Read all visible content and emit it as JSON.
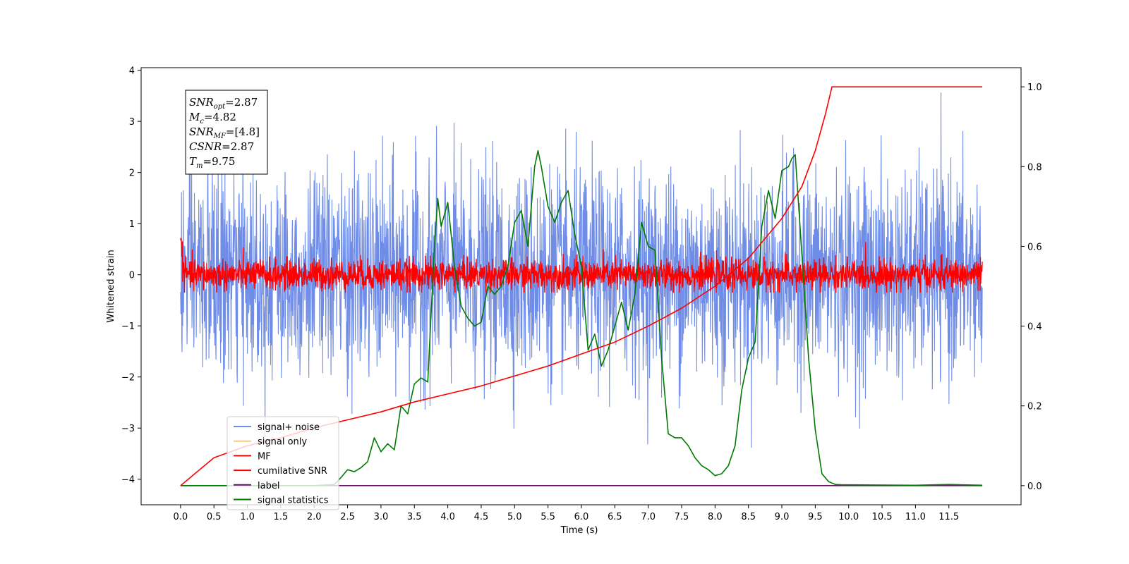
{
  "chart_data": {
    "type": "line",
    "xlabel": "Time (s)",
    "ylabel": "Whitened strain",
    "xlim": [
      -0.59,
      12.58
    ],
    "ylim": [
      -4.5,
      4.05
    ],
    "y2lim": [
      -0.048,
      1.048
    ],
    "xticks": [
      "0.0",
      "0.5",
      "1.0",
      "1.5",
      "2.0",
      "2.5",
      "3.0",
      "3.5",
      "4.0",
      "4.5",
      "5.0",
      "5.5",
      "6.0",
      "6.5",
      "7.0",
      "7.5",
      "8.0",
      "8.5",
      "9.0",
      "9.5",
      "10.0",
      "10.5",
      "11.0",
      "11.5"
    ],
    "yticks": [
      "4",
      "3",
      "2",
      "1",
      "0",
      "−1",
      "−2",
      "−3",
      "−4"
    ],
    "y2ticks": [
      "1.0",
      "0.8",
      "0.6",
      "0.4",
      "0.2",
      "0.0"
    ],
    "grid": false,
    "legend_position": "lower-left",
    "series": [
      {
        "name": "signal+ noise",
        "color": "#6f8ce6",
        "axis": "left",
        "t_range": [
          0,
          12
        ],
        "amplitude_std": 1.0,
        "approx_range": [
          -4.1,
          3.7
        ]
      },
      {
        "name": "signal only",
        "color": "#ffc97a",
        "axis": "left"
      },
      {
        "name": "MF",
        "color": "#ff0000",
        "axis": "left",
        "t_range": [
          0,
          12
        ],
        "amplitude_std": 0.15,
        "approx_range": [
          -0.35,
          0.95
        ]
      },
      {
        "name": "cumilative SNR",
        "color": "#ff0000",
        "axis": "right",
        "x": [
          0,
          0.5,
          1.0,
          1.5,
          2.0,
          2.5,
          3.0,
          3.5,
          4.0,
          4.5,
          5.0,
          5.5,
          6.0,
          6.5,
          7.0,
          7.5,
          8.0,
          8.5,
          9.0,
          9.3,
          9.5,
          9.65,
          9.75,
          10.0,
          12.0
        ],
        "y": [
          0.0,
          0.07,
          0.1,
          0.12,
          0.145,
          0.165,
          0.185,
          0.21,
          0.23,
          0.25,
          0.275,
          0.3,
          0.33,
          0.36,
          0.4,
          0.445,
          0.5,
          0.57,
          0.67,
          0.75,
          0.84,
          0.93,
          1.0,
          1.0,
          1.0
        ]
      },
      {
        "name": "label",
        "color": "#6a0a6e",
        "axis": "right",
        "x": [
          0,
          12
        ],
        "y": [
          0,
          0
        ]
      },
      {
        "name": "signal statistics",
        "color": "#007a00",
        "axis": "right",
        "x": [
          0,
          1.0,
          2.0,
          2.3,
          2.4,
          2.5,
          2.6,
          2.7,
          2.8,
          2.9,
          3.0,
          3.1,
          3.2,
          3.3,
          3.4,
          3.5,
          3.6,
          3.7,
          3.8,
          3.85,
          3.9,
          4.0,
          4.1,
          4.2,
          4.3,
          4.4,
          4.5,
          4.6,
          4.7,
          4.8,
          4.9,
          5.0,
          5.1,
          5.2,
          5.3,
          5.35,
          5.4,
          5.5,
          5.6,
          5.7,
          5.8,
          5.9,
          6.0,
          6.1,
          6.2,
          6.3,
          6.4,
          6.5,
          6.6,
          6.7,
          6.8,
          6.9,
          7.0,
          7.1,
          7.2,
          7.3,
          7.4,
          7.5,
          7.6,
          7.7,
          7.8,
          7.9,
          8.0,
          8.1,
          8.2,
          8.3,
          8.4,
          8.5,
          8.6,
          8.7,
          8.8,
          8.9,
          9.0,
          9.1,
          9.15,
          9.2,
          9.3,
          9.4,
          9.5,
          9.6,
          9.7,
          9.8,
          9.9,
          10.0,
          11.0,
          11.5,
          12.0
        ],
        "y": [
          0.0,
          0.0,
          0.0,
          0.003,
          0.02,
          0.04,
          0.035,
          0.045,
          0.06,
          0.12,
          0.085,
          0.105,
          0.09,
          0.2,
          0.18,
          0.255,
          0.27,
          0.26,
          0.6,
          0.72,
          0.65,
          0.71,
          0.55,
          0.45,
          0.42,
          0.4,
          0.41,
          0.5,
          0.48,
          0.5,
          0.55,
          0.66,
          0.69,
          0.6,
          0.8,
          0.84,
          0.8,
          0.7,
          0.66,
          0.71,
          0.74,
          0.63,
          0.55,
          0.34,
          0.38,
          0.3,
          0.34,
          0.4,
          0.46,
          0.39,
          0.48,
          0.66,
          0.6,
          0.59,
          0.32,
          0.13,
          0.12,
          0.12,
          0.1,
          0.07,
          0.05,
          0.04,
          0.025,
          0.03,
          0.05,
          0.1,
          0.24,
          0.32,
          0.36,
          0.65,
          0.74,
          0.67,
          0.79,
          0.8,
          0.82,
          0.83,
          0.58,
          0.32,
          0.14,
          0.03,
          0.01,
          0.003,
          0.002,
          0.002,
          0.001,
          0.003,
          0.001
        ]
      }
    ],
    "annotation": {
      "lines": [
        {
          "sym": "SNR",
          "sub": "opt",
          "value": "=2.87"
        },
        {
          "sym": "M",
          "sub": "c",
          "value": "=4.82"
        },
        {
          "sym": "SNR",
          "sub": "MF",
          "value": "=[4.8]"
        },
        {
          "sym": "CSNR",
          "sub": "",
          "value": "=2.87"
        },
        {
          "sym": "T",
          "sub": "m",
          "value": "=9.75"
        }
      ]
    }
  }
}
